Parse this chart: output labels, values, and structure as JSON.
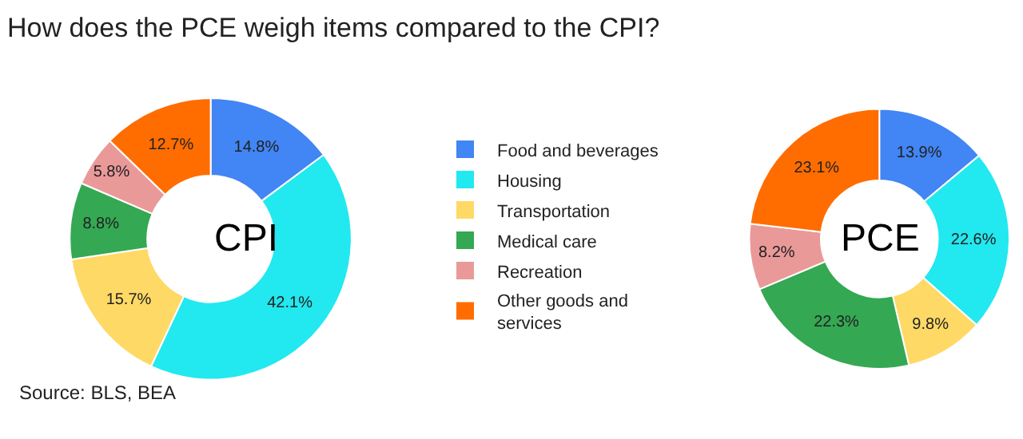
{
  "chart_data": [
    {
      "type": "donut",
      "title": "How does the PCE weigh items compared to the CPI?",
      "categories": [
        "Food and beverages",
        "Housing",
        "Transportation",
        "Medical care",
        "Recreation",
        "Other goods and services"
      ],
      "values": [
        14.8,
        42.1,
        15.7,
        8.8,
        5.8,
        12.7
      ],
      "value_labels": [
        "14.8%",
        "42.1%",
        "15.7%",
        "8.8%",
        "5.8%",
        "12.7%"
      ],
      "colors": [
        "#4285f4",
        "#22e8f0",
        "#ffd966",
        "#34a853",
        "#ea9999",
        "#ff6d01"
      ],
      "legend": "right",
      "annotations": [
        "CPI",
        "Source: BLS, BEA"
      ]
    },
    {
      "type": "donut",
      "categories": [
        null,
        null,
        null,
        null,
        null,
        null
      ],
      "values": [
        13.9,
        22.6,
        9.8,
        22.3,
        8.2,
        23.1
      ],
      "value_labels": [
        "13.9%",
        "22.6%",
        "9.8%",
        "22.3%",
        "8.2%",
        "23.1%"
      ],
      "colors": [
        "#4285f4",
        "#22e8f0",
        "#ffd966",
        "#34a853",
        "#ea9999",
        "#ff6d01"
      ],
      "annotations": [
        "PCE"
      ]
    }
  ]
}
